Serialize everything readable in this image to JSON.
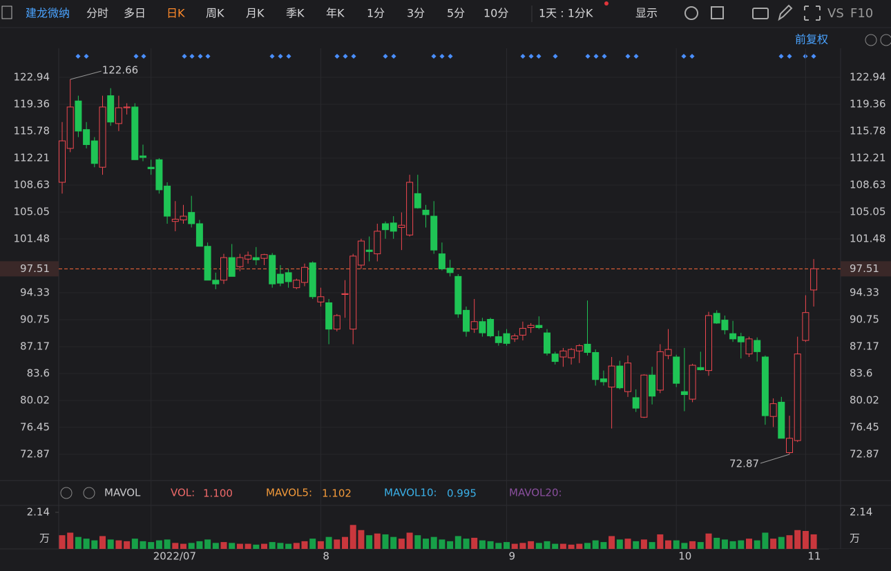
{
  "toolbar": {
    "stock": "建龙微纳",
    "tabs": [
      "分时",
      "多日",
      "日K",
      "周K",
      "月K",
      "季K",
      "年K",
      "1分",
      "3分",
      "5分",
      "10分"
    ],
    "active_tab": 2,
    "period": "1天 : 1分K",
    "display": "显示",
    "vs": "VS",
    "f10": "F10",
    "adjust": "前复权"
  },
  "indicator": {
    "name": "MAVOL",
    "vol_label": "VOL:",
    "vol_value": "1.100",
    "ma5_label": "MAVOL5:",
    "ma5_value": "1.102",
    "ma10_label": "MAVOL10:",
    "ma10_value": "0.995",
    "ma20_label": "MAVOL20:"
  },
  "chart_data": [
    {
      "type": "candlestick",
      "categories": [
        null,
        null,
        null,
        null,
        null,
        null,
        null,
        null,
        null,
        null,
        null,
        "2022/07",
        null,
        null,
        null,
        null,
        null,
        null,
        null,
        null,
        null,
        null,
        null,
        null,
        null,
        null,
        null,
        null,
        null,
        null,
        null,
        null,
        "8",
        null,
        null,
        null,
        null,
        null,
        null,
        null,
        null,
        null,
        null,
        null,
        null,
        null,
        null,
        null,
        null,
        null,
        null,
        null,
        null,
        null,
        null,
        "9",
        null,
        null,
        null,
        null,
        null,
        null,
        null,
        null,
        null,
        null,
        null,
        null,
        null,
        null,
        null,
        null,
        null,
        null,
        null,
        null,
        "10",
        null,
        null,
        null,
        null,
        null,
        null,
        null,
        null,
        null,
        null,
        null,
        null,
        null,
        null,
        null,
        "11",
        null
      ],
      "open": [
        109,
        113.5,
        119.8,
        116,
        114.5,
        111,
        120.5,
        116.8,
        118.9,
        119,
        112.5,
        111,
        112,
        108.5,
        103.8,
        104,
        105,
        103.5,
        100.5,
        96,
        96,
        99,
        97.8,
        98.8,
        99,
        98.9,
        99.3,
        96.8,
        97,
        95,
        95.7,
        98.3,
        93.1,
        93,
        89.5,
        94.1,
        89.5,
        98,
        100,
        99.5,
        103.5,
        103.6,
        103,
        102,
        107.5,
        105.3,
        104.5,
        99.5,
        97.6,
        96.5,
        92,
        89.5,
        90.5,
        90.8,
        88.5,
        88.9,
        88.2,
        88.7,
        89.7,
        90,
        89,
        86.2,
        85.8,
        85.7,
        86.6,
        87.5,
        86.4,
        82.9,
        81.8,
        84.6,
        81.2,
        80.4,
        77.8,
        83.4,
        81.4,
        86,
        85.8,
        81.2,
        80.2,
        84.4,
        84,
        91.6,
        90.7,
        88.9,
        88.5,
        86.2,
        88,
        85.8,
        77.9,
        79.8,
        73.1,
        74.7,
        88,
        94.7
      ],
      "high": [
        117,
        122.66,
        120.5,
        117,
        115,
        120.5,
        121.5,
        120.5,
        119.5,
        119.5,
        114,
        112,
        112.2,
        109,
        106.5,
        106,
        107.2,
        104,
        101,
        97,
        99.5,
        100.8,
        99.5,
        99.8,
        100.4,
        99.5,
        99.6,
        98,
        97.5,
        96.2,
        98.2,
        98.5,
        95,
        93.5,
        91.5,
        96,
        99.5,
        101.5,
        101.8,
        103.5,
        103.8,
        104.5,
        105,
        110,
        110,
        106,
        106.5,
        101,
        98.7,
        96.8,
        92.5,
        93.5,
        91,
        91,
        89.3,
        89.5,
        88.9,
        90.5,
        90.3,
        91.2,
        89.5,
        86.5,
        87,
        87,
        87.5,
        93.3,
        86.8,
        84,
        85.8,
        85.3,
        86,
        81.5,
        83.5,
        84.5,
        87.5,
        89.5,
        86.1,
        87,
        84.9,
        86.5,
        91.8,
        92,
        91.3,
        90.6,
        89,
        88.5,
        88.4,
        86,
        80.3,
        80.5,
        78,
        88.5,
        94,
        98.8
      ],
      "low": [
        107.5,
        113,
        115,
        113.5,
        111,
        110,
        116.5,
        115.8,
        118,
        112,
        111.8,
        110,
        107.5,
        103.5,
        102.5,
        103.5,
        103,
        100.5,
        96,
        94.8,
        95.5,
        96.5,
        97.2,
        98.2,
        98,
        98,
        95,
        95.2,
        95,
        94.8,
        95.2,
        93.5,
        92.5,
        87.5,
        89.2,
        91,
        87.5,
        97.5,
        98.5,
        98.5,
        101.5,
        101.5,
        100,
        101.8,
        105.5,
        103,
        99.5,
        97.3,
        96.5,
        91,
        88.5,
        89,
        88.5,
        88.4,
        87.3,
        87.3,
        87.8,
        88,
        89,
        89.5,
        86,
        84.8,
        84.5,
        84.8,
        85,
        86,
        82,
        82,
        76.3,
        81.5,
        80.5,
        78.5,
        77.7,
        79.5,
        81,
        85.5,
        81.8,
        78.6,
        79.8,
        84,
        83.3,
        90.2,
        88.8,
        87.8,
        85.6,
        85.8,
        85.2,
        76.8,
        76.5,
        75,
        72.87,
        74.5,
        87.8,
        92.5
      ],
      "close": [
        114.5,
        119,
        115.8,
        114,
        111.5,
        119,
        117,
        118.9,
        119,
        112,
        112.3,
        110.8,
        108,
        104.5,
        104.1,
        104.5,
        103.5,
        100.5,
        96,
        95.5,
        99,
        96.5,
        99,
        99.3,
        98.7,
        99.4,
        95.5,
        95.6,
        95.8,
        96,
        97.7,
        93.8,
        93.8,
        89.5,
        91.3,
        94.2,
        99.2,
        101.2,
        99.8,
        102.5,
        102.7,
        102.5,
        103.3,
        109,
        105.6,
        104.7,
        100,
        97.5,
        97,
        91.5,
        89.2,
        90.5,
        89,
        88.6,
        87.7,
        87.6,
        88.6,
        89.6,
        90,
        89.7,
        86.3,
        85.2,
        86.6,
        86.8,
        87.3,
        86.4,
        82.8,
        82.5,
        84.6,
        81.7,
        85,
        79,
        83.4,
        80.6,
        86.5,
        86.8,
        82.3,
        80.8,
        84.7,
        84.1,
        91.3,
        90.3,
        89.4,
        88.2,
        87.8,
        88.2,
        86.5,
        78,
        79.6,
        75,
        75,
        86.2,
        91.7,
        97.51
      ],
      "up_color": "#f0474f",
      "down_color": "#1fc455",
      "ylim": [
        69.48,
        126.79
      ],
      "yticks": [
        122.94,
        119.36,
        115.78,
        112.21,
        108.63,
        105.05,
        101.48,
        94.33,
        90.75,
        87.17,
        83.6,
        80.02,
        76.45,
        72.87
      ],
      "current_price": {
        "value": 97.51,
        "label": "97.51",
        "color": "#ff6a3d"
      },
      "annotations": [
        {
          "text": "122.66"
        },
        {
          "text": "72.87"
        }
      ],
      "grid": true
    },
    {
      "type": "bar",
      "values": [
        0.8,
        0.95,
        0.7,
        0.6,
        0.5,
        0.75,
        0.55,
        0.5,
        0.45,
        0.6,
        0.45,
        0.4,
        0.5,
        0.55,
        0.35,
        0.3,
        0.35,
        0.45,
        0.55,
        0.35,
        0.4,
        0.35,
        0.3,
        0.3,
        0.25,
        0.3,
        0.4,
        0.35,
        0.3,
        0.35,
        0.45,
        0.6,
        0.45,
        0.7,
        0.55,
        0.7,
        1.4,
        1.1,
        0.8,
        0.9,
        0.85,
        0.7,
        0.6,
        0.95,
        0.8,
        0.6,
        0.7,
        0.55,
        0.45,
        0.75,
        0.6,
        0.65,
        0.5,
        0.45,
        0.35,
        0.4,
        0.3,
        0.35,
        0.45,
        0.35,
        0.45,
        0.3,
        0.3,
        0.25,
        0.3,
        0.35,
        0.5,
        0.4,
        0.75,
        0.55,
        0.6,
        0.45,
        0.55,
        0.4,
        0.85,
        0.5,
        0.5,
        0.35,
        0.45,
        0.4,
        0.9,
        0.65,
        0.55,
        0.45,
        0.5,
        0.6,
        0.5,
        0.95,
        0.6,
        0.7,
        0.8,
        1.1,
        1.05,
        0.85
      ],
      "up_color": "#c9373d",
      "down_color": "#17a048",
      "ylim": [
        0,
        2.14
      ],
      "yticks": [
        2.14
      ],
      "unit": "万"
    }
  ]
}
